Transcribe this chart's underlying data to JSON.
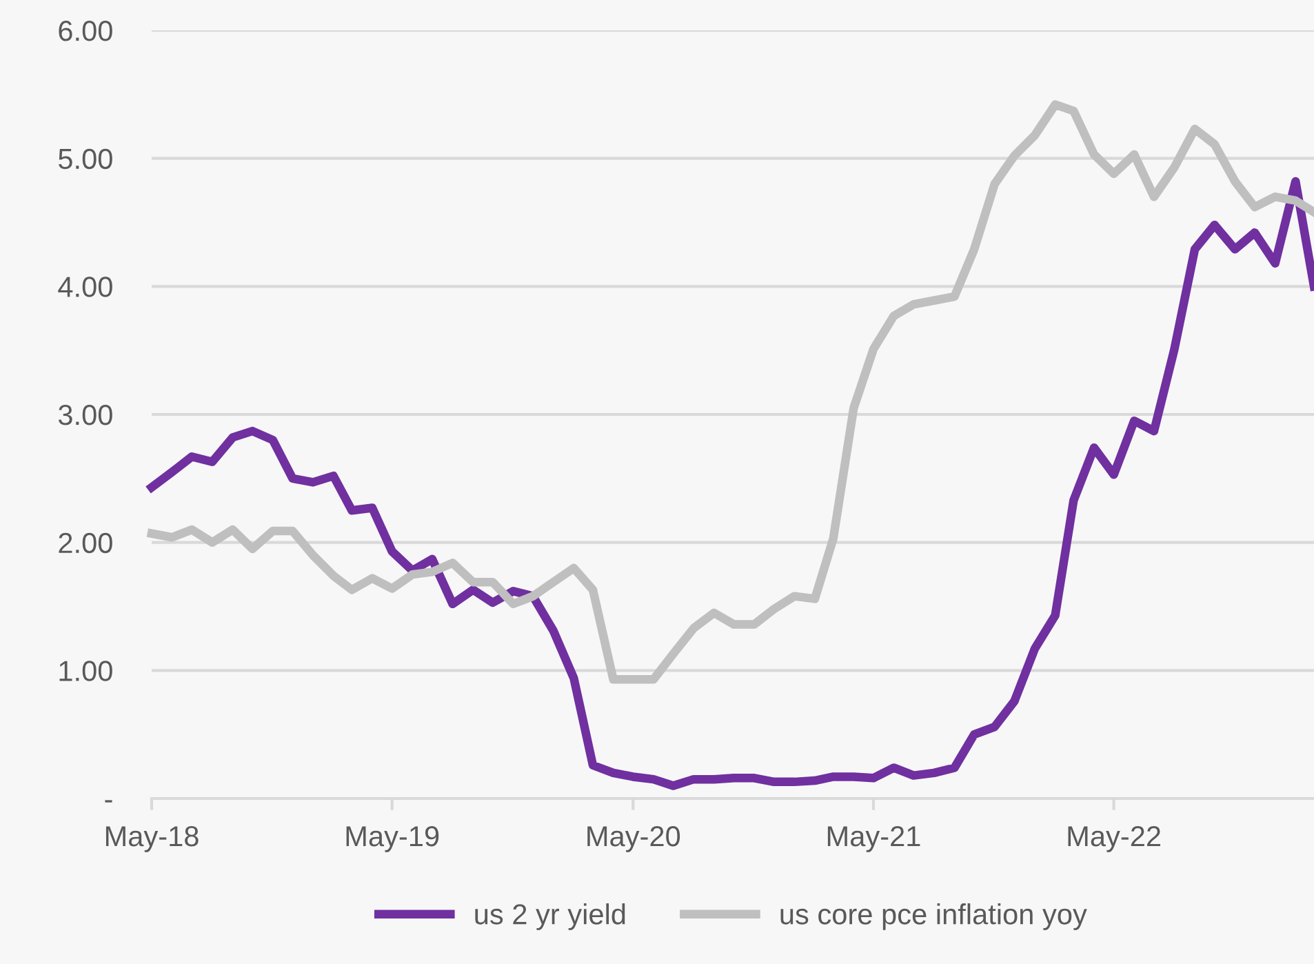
{
  "chart_data": {
    "type": "line",
    "x": [
      "2018-05",
      "2018-06",
      "2018-07",
      "2018-08",
      "2018-09",
      "2018-10",
      "2018-11",
      "2018-12",
      "2019-01",
      "2019-02",
      "2019-03",
      "2019-04",
      "2019-05",
      "2019-06",
      "2019-07",
      "2019-08",
      "2019-09",
      "2019-10",
      "2019-11",
      "2019-12",
      "2020-01",
      "2020-02",
      "2020-03",
      "2020-04",
      "2020-05",
      "2020-06",
      "2020-07",
      "2020-08",
      "2020-09",
      "2020-10",
      "2020-11",
      "2020-12",
      "2021-01",
      "2021-02",
      "2021-03",
      "2021-04",
      "2021-05",
      "2021-06",
      "2021-07",
      "2021-08",
      "2021-09",
      "2021-10",
      "2021-11",
      "2021-12",
      "2022-01",
      "2022-02",
      "2022-03",
      "2022-04",
      "2022-05",
      "2022-06",
      "2022-07",
      "2022-08",
      "2022-09",
      "2022-10",
      "2022-11",
      "2022-12",
      "2023-01",
      "2023-02",
      "2023-03"
    ],
    "series": [
      {
        "name": "us 2 yr yield",
        "color": "#7030a0",
        "values": [
          2.43,
          2.55,
          2.67,
          2.63,
          2.82,
          2.87,
          2.8,
          2.5,
          2.47,
          2.52,
          2.25,
          2.27,
          1.93,
          1.78,
          1.87,
          1.52,
          1.63,
          1.53,
          1.62,
          1.58,
          1.31,
          0.94,
          0.26,
          0.2,
          0.17,
          0.15,
          0.1,
          0.15,
          0.15,
          0.16,
          0.16,
          0.13,
          0.13,
          0.14,
          0.17,
          0.17,
          0.16,
          0.24,
          0.18,
          0.2,
          0.24,
          0.5,
          0.56,
          0.76,
          1.17,
          1.43,
          2.33,
          2.74,
          2.53,
          2.95,
          2.87,
          3.51,
          4.29,
          4.48,
          4.29,
          4.42,
          4.18,
          4.82,
          4.0
        ]
      },
      {
        "name": "us core pce inflation yoy",
        "color": "#bfbfbf",
        "values": [
          2.07,
          2.04,
          2.1,
          2.0,
          2.1,
          1.95,
          2.09,
          2.09,
          1.9,
          1.74,
          1.63,
          1.72,
          1.64,
          1.75,
          1.77,
          1.84,
          1.69,
          1.69,
          1.52,
          1.58,
          1.69,
          1.8,
          1.63,
          0.93,
          0.93,
          0.93,
          1.13,
          1.33,
          1.45,
          1.36,
          1.36,
          1.48,
          1.58,
          1.56,
          2.03,
          3.05,
          3.51,
          3.77,
          3.86,
          3.89,
          3.92,
          4.29,
          4.8,
          5.02,
          5.18,
          5.42,
          5.37,
          5.03,
          4.88,
          5.03,
          4.7,
          4.93,
          5.23,
          5.11,
          4.82,
          4.62,
          4.7,
          4.67,
          4.58
        ]
      }
    ],
    "xlim": [
      "2018-05",
      "2023-03"
    ],
    "xticks": [
      {
        "value": "2018-05",
        "label": "May-18"
      },
      {
        "value": "2019-05",
        "label": "May-19"
      },
      {
        "value": "2020-05",
        "label": "May-20"
      },
      {
        "value": "2021-05",
        "label": "May-21"
      },
      {
        "value": "2022-05",
        "label": "May-22"
      }
    ],
    "ylim": [
      0,
      6
    ],
    "yticks": [
      {
        "value": 0,
        "label": "-"
      },
      {
        "value": 1,
        "label": "1.00"
      },
      {
        "value": 2,
        "label": "2.00"
      },
      {
        "value": 3,
        "label": "3.00"
      },
      {
        "value": 4,
        "label": "4.00"
      },
      {
        "value": 5,
        "label": "5.00"
      },
      {
        "value": 6,
        "label": "6.00"
      }
    ],
    "grid": "y",
    "legend": "bottom",
    "marker": "none",
    "line_style": "solid"
  }
}
